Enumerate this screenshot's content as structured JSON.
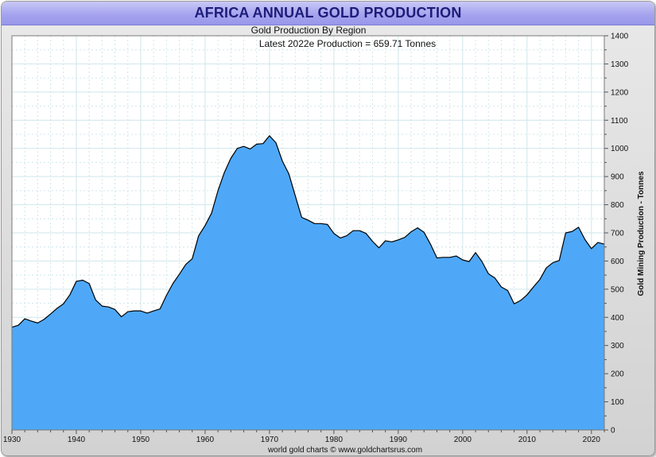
{
  "chart_data": {
    "type": "area",
    "title": "AFRICA ANNUAL GOLD PRODUCTION",
    "subtitle": "Gold Production By Region",
    "annotation": "Latest 2022e  Production = 659.71 Tonnes",
    "ylabel": "Gold Mining Production - Tonnes",
    "xlabel": "",
    "footer": "world gold charts © www.goldchartsrus.com",
    "xlim": [
      1930,
      2022
    ],
    "ylim": [
      0,
      1400
    ],
    "x_ticks": [
      "1930",
      "1940",
      "1950",
      "1960",
      "1970",
      "1980",
      "1990",
      "2000",
      "2010",
      "2020"
    ],
    "y_ticks": [
      "0",
      "100",
      "200",
      "300",
      "400",
      "500",
      "600",
      "700",
      "800",
      "900",
      "1000",
      "1100",
      "1200",
      "1300",
      "1400"
    ],
    "grid": true,
    "colors": {
      "fill": "#4ea8f7",
      "line": "#000000",
      "title": "#1d1d7a",
      "grid": "#cfe6ea"
    },
    "series": [
      {
        "name": "Africa",
        "x": [
          1930,
          1931,
          1932,
          1933,
          1934,
          1935,
          1936,
          1937,
          1938,
          1939,
          1940,
          1941,
          1942,
          1943,
          1944,
          1945,
          1946,
          1947,
          1948,
          1949,
          1950,
          1951,
          1952,
          1953,
          1954,
          1955,
          1956,
          1957,
          1958,
          1959,
          1960,
          1961,
          1962,
          1963,
          1964,
          1965,
          1966,
          1967,
          1968,
          1969,
          1970,
          1971,
          1972,
          1973,
          1974,
          1975,
          1976,
          1977,
          1978,
          1979,
          1980,
          1981,
          1982,
          1983,
          1984,
          1985,
          1986,
          1987,
          1988,
          1989,
          1990,
          1991,
          1992,
          1993,
          1994,
          1995,
          1996,
          1997,
          1998,
          1999,
          2000,
          2001,
          2002,
          2003,
          2004,
          2005,
          2006,
          2007,
          2008,
          2009,
          2010,
          2011,
          2012,
          2013,
          2014,
          2015,
          2016,
          2017,
          2018,
          2019,
          2020,
          2021,
          2022
        ],
        "values": [
          365,
          372,
          395,
          387,
          380,
          393,
          412,
          432,
          448,
          480,
          528,
          532,
          520,
          462,
          440,
          437,
          428,
          402,
          420,
          423,
          423,
          415,
          423,
          430,
          478,
          520,
          553,
          588,
          608,
          690,
          726,
          770,
          850,
          915,
          965,
          1000,
          1007,
          998,
          1015,
          1017,
          1045,
          1020,
          955,
          910,
          832,
          755,
          745,
          733,
          733,
          730,
          698,
          682,
          690,
          708,
          708,
          698,
          670,
          647,
          672,
          668,
          675,
          684,
          704,
          718,
          702,
          660,
          611,
          613,
          613,
          618,
          604,
          598,
          630,
          598,
          555,
          540,
          508,
          495,
          448,
          460,
          480,
          508,
          535,
          576,
          594,
          602,
          700,
          705,
          720,
          676,
          644,
          666,
          660
        ]
      }
    ]
  }
}
